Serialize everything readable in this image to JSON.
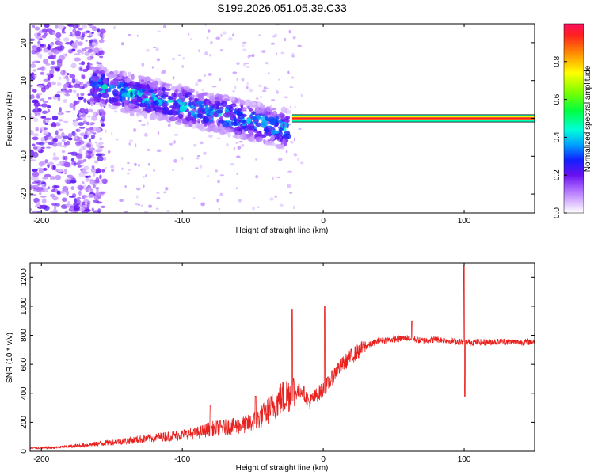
{
  "title": "S199.2026.051.05.39.C33",
  "chart_data": [
    {
      "type": "heatmap",
      "title": "S199.2026.051.05.39.C33",
      "xlabel": "Height of straight line (km)",
      "ylabel": "Frequency (Hz)",
      "xlim": [
        -208,
        150
      ],
      "ylim": [
        -25,
        25
      ],
      "xticks": [
        -200,
        -100,
        0,
        100
      ],
      "yticks": [
        -20,
        -10,
        0,
        10,
        20
      ],
      "colorbar": {
        "label": "Normalized spectral amplitude",
        "range": [
          0,
          1
        ],
        "ticks": [
          0.0,
          0.2,
          0.4,
          0.6,
          0.8
        ],
        "colormap": [
          "#ffffff",
          "#d8b8ff",
          "#8a2be2",
          "#2200ff",
          "#00b0ff",
          "#00ffd0",
          "#00ff00",
          "#ffff00",
          "#ff8000",
          "#ff0040"
        ]
      },
      "features": [
        {
          "name": "broadband-noise",
          "x_range": [
            -208,
            -165
          ],
          "freq_range": [
            -25,
            25
          ],
          "amplitude": 0.15
        },
        {
          "name": "descending-band",
          "x_range": [
            -165,
            -25
          ],
          "freq_start": 9,
          "freq_end": -3,
          "amplitude": 0.3
        },
        {
          "name": "carrier-line",
          "x_range": [
            -22,
            150
          ],
          "freq": 0,
          "amplitude": 0.95
        }
      ]
    },
    {
      "type": "line",
      "xlabel": "Height of straight line (km)",
      "ylabel": "SNR (10 * v/v)",
      "xlim": [
        -208,
        150
      ],
      "ylim": [
        0,
        1300
      ],
      "xticks": [
        -200,
        -100,
        0,
        100
      ],
      "yticks": [
        0,
        200,
        400,
        600,
        800,
        1000,
        1200
      ],
      "series": [
        {
          "name": "SNR",
          "color": "#e8211f",
          "x": [
            -208,
            -190,
            -170,
            -150,
            -130,
            -110,
            -100,
            -90,
            -80,
            -70,
            -60,
            -50,
            -40,
            -30,
            -25,
            -20,
            -15,
            -10,
            -5,
            0,
            5,
            10,
            20,
            30,
            40,
            50,
            60,
            70,
            80,
            90,
            100,
            110,
            120,
            130,
            140,
            150
          ],
          "values": [
            20,
            25,
            40,
            60,
            80,
            100,
            110,
            120,
            150,
            160,
            170,
            190,
            260,
            350,
            380,
            400,
            420,
            330,
            380,
            420,
            480,
            560,
            650,
            720,
            760,
            770,
            780,
            760,
            770,
            760,
            750,
            750,
            750,
            755,
            750,
            755
          ]
        }
      ],
      "spikes": [
        {
          "x": -80,
          "value": 320
        },
        {
          "x": -48,
          "value": 380
        },
        {
          "x": -22,
          "value": 980
        },
        {
          "x": 1,
          "value": 1000
        },
        {
          "x": 63,
          "value": 900
        },
        {
          "x": 100,
          "value": 1280
        },
        {
          "x": 100.5,
          "value": 380
        }
      ]
    }
  ]
}
